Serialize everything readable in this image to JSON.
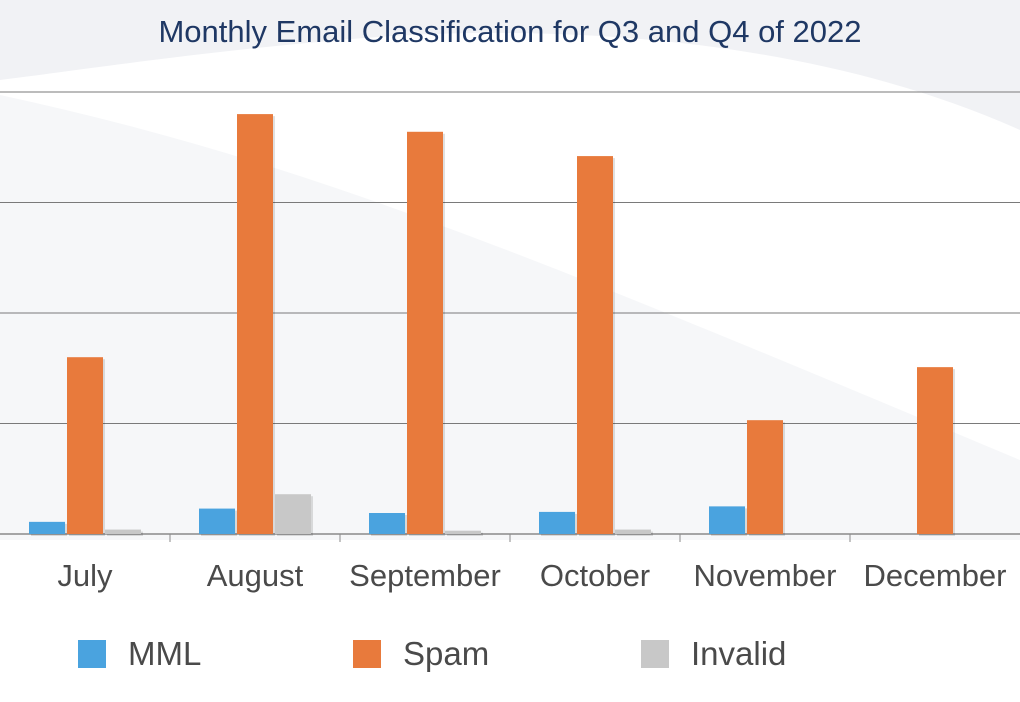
{
  "chart_data": {
    "type": "bar",
    "title": "Monthly Email Classification for Q3 and Q4 of 2022",
    "xlabel": "",
    "ylabel": "",
    "categories": [
      "July",
      "August",
      "September",
      "October",
      "November",
      "December"
    ],
    "series": [
      {
        "name": "MML",
        "color": "#4aa3df",
        "values": [
          11,
          23,
          19,
          20,
          25,
          0
        ]
      },
      {
        "name": "Spam",
        "color": "#e87a3c",
        "values": [
          160,
          380,
          364,
          342,
          103,
          151
        ]
      },
      {
        "name": "Invalid",
        "color": "#c8c8c8",
        "values": [
          4,
          36,
          3,
          4,
          0,
          0
        ]
      }
    ],
    "ylim": [
      0,
      400
    ],
    "gridlines": [
      0,
      100,
      200,
      300,
      400
    ],
    "y_tick_labels_shown": false,
    "grid": true,
    "legend_position": "bottom"
  }
}
